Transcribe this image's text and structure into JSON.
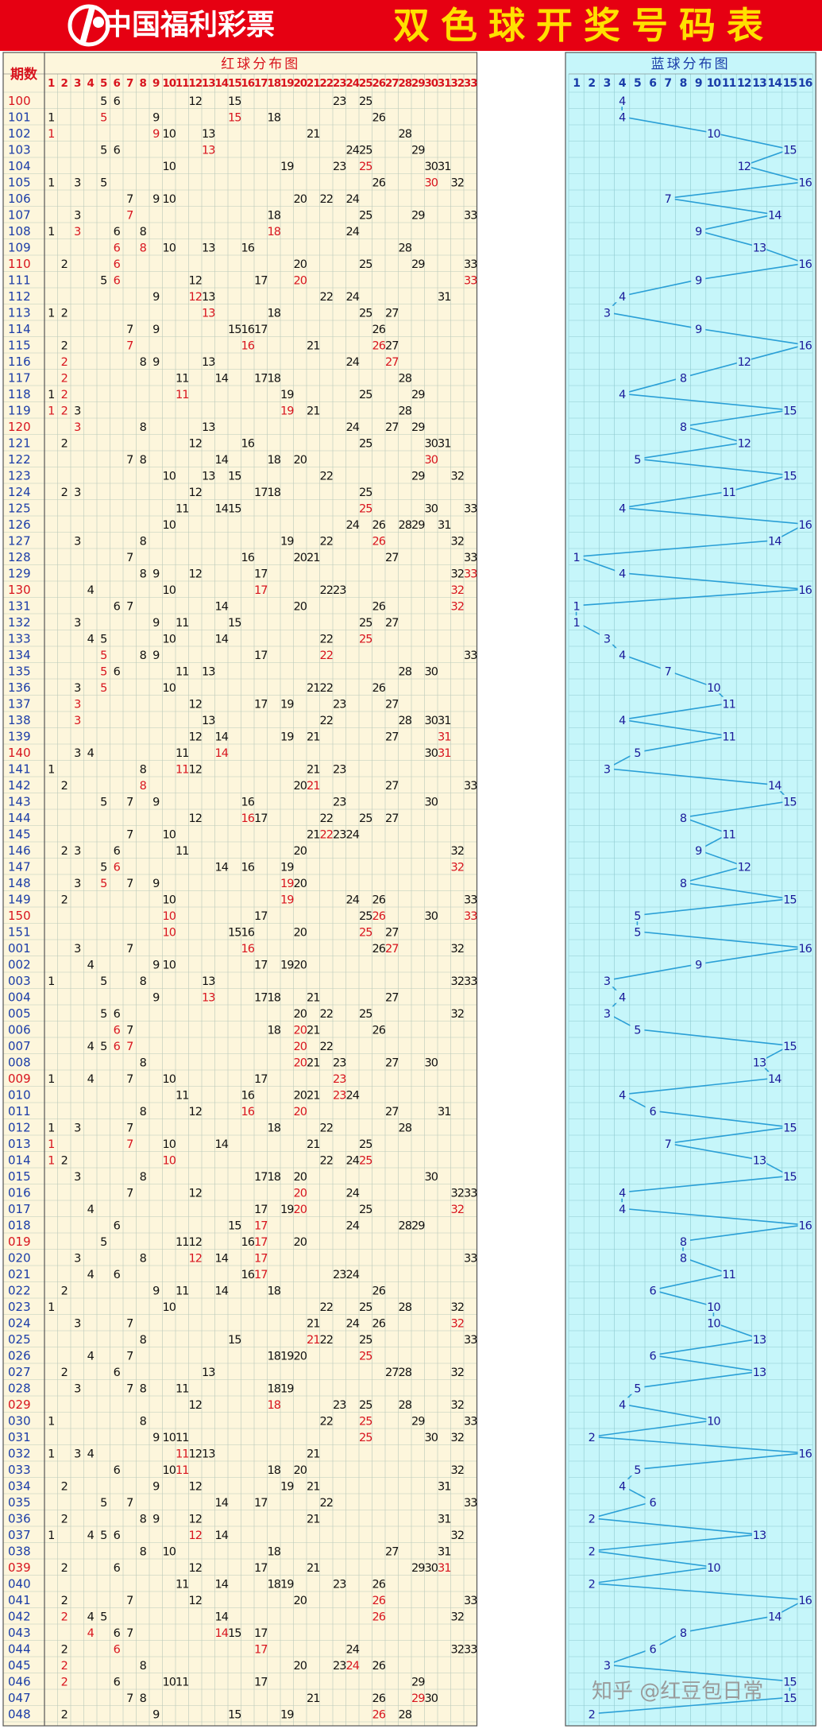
{
  "header": {
    "logo_text": "中国福利彩票",
    "title": "双色球开奖号码表",
    "watermark": "知乎 @红豆包日常"
  },
  "colors": {
    "header_bg": "#e60012",
    "title_text": "#ffe000",
    "red_panel_bg": "#fdf6dc",
    "blue_panel_bg": "#c6f6fa",
    "red_hot_number": "#d8141e",
    "number_dark": "#111111",
    "blue_number": "#1a1a9a",
    "trend_line": "#2a9fd6",
    "period_red": "#d8141e",
    "period_blue": "#1a3ca8"
  },
  "chart_data": {
    "type": "table",
    "period_header": "期数",
    "red_section_title": "红球分布图",
    "blue_section_title": "蓝球分布图",
    "red_columns": [
      "1",
      "2",
      "3",
      "4",
      "5",
      "6",
      "7",
      "8",
      "9",
      "10",
      "11",
      "12",
      "13",
      "14",
      "15",
      "16",
      "17",
      "18",
      "19",
      "20",
      "21",
      "22",
      "23",
      "24",
      "25",
      "26",
      "27",
      "28",
      "29",
      "30",
      "31",
      "32",
      "33"
    ],
    "blue_columns": [
      "1",
      "2",
      "3",
      "4",
      "5",
      "6",
      "7",
      "8",
      "9",
      "10",
      "11",
      "12",
      "13",
      "14",
      "15",
      "16"
    ],
    "draws": [
      {
        "period": "100",
        "red": [
          5,
          6,
          12,
          15,
          23,
          25
        ],
        "blue": 4
      },
      {
        "period": "101",
        "red": [
          1,
          5,
          9,
          15,
          18,
          26
        ],
        "blue": 4
      },
      {
        "period": "102",
        "red": [
          1,
          9,
          10,
          13,
          21,
          28
        ],
        "blue": 10
      },
      {
        "period": "103",
        "red": [
          5,
          6,
          13,
          24,
          25,
          29
        ],
        "blue": 15
      },
      {
        "period": "104",
        "red": [
          10,
          19,
          23,
          25,
          30,
          31
        ],
        "blue": 12
      },
      {
        "period": "105",
        "red": [
          1,
          3,
          5,
          26,
          30,
          32
        ],
        "blue": 16
      },
      {
        "period": "106",
        "red": [
          7,
          9,
          10,
          20,
          22,
          24
        ],
        "blue": 7
      },
      {
        "period": "107",
        "red": [
          3,
          7,
          18,
          25,
          29,
          33
        ],
        "blue": 14
      },
      {
        "period": "108",
        "red": [
          1,
          3,
          6,
          8,
          18,
          24
        ],
        "blue": 9
      },
      {
        "period": "109",
        "red": [
          6,
          8,
          10,
          13,
          16,
          28
        ],
        "blue": 13
      },
      {
        "period": "110",
        "red": [
          2,
          6,
          20,
          25,
          29,
          33
        ],
        "blue": 16
      },
      {
        "period": "111",
        "red": [
          5,
          6,
          12,
          17,
          20,
          33
        ],
        "blue": 9
      },
      {
        "period": "112",
        "red": [
          9,
          12,
          13,
          22,
          24,
          31
        ],
        "blue": 4
      },
      {
        "period": "113",
        "red": [
          1,
          2,
          13,
          18,
          25,
          27
        ],
        "blue": 3
      },
      {
        "period": "114",
        "red": [
          7,
          9,
          15,
          16,
          17,
          26
        ],
        "blue": 9
      },
      {
        "period": "115",
        "red": [
          2,
          7,
          16,
          21,
          26,
          27
        ],
        "blue": 16
      },
      {
        "period": "116",
        "red": [
          2,
          8,
          9,
          13,
          24,
          27
        ],
        "blue": 12
      },
      {
        "period": "117",
        "red": [
          2,
          11,
          14,
          17,
          18,
          28
        ],
        "blue": 8
      },
      {
        "period": "118",
        "red": [
          1,
          2,
          11,
          19,
          25,
          29
        ],
        "blue": 4
      },
      {
        "period": "119",
        "red": [
          1,
          2,
          3,
          19,
          21,
          28
        ],
        "blue": 15
      },
      {
        "period": "120",
        "red": [
          3,
          8,
          13,
          24,
          27,
          29
        ],
        "blue": 8
      },
      {
        "period": "121",
        "red": [
          2,
          12,
          16,
          25,
          30,
          31
        ],
        "blue": 12
      },
      {
        "period": "122",
        "red": [
          7,
          8,
          14,
          18,
          20,
          30
        ],
        "blue": 5
      },
      {
        "period": "123",
        "red": [
          10,
          13,
          15,
          22,
          29,
          32
        ],
        "blue": 15
      },
      {
        "period": "124",
        "red": [
          2,
          3,
          12,
          17,
          18,
          25
        ],
        "blue": 11
      },
      {
        "period": "125",
        "red": [
          11,
          14,
          15,
          25,
          30,
          33
        ],
        "blue": 4
      },
      {
        "period": "126",
        "red": [
          10,
          24,
          26,
          28,
          29,
          31
        ],
        "blue": 16
      },
      {
        "period": "127",
        "red": [
          3,
          8,
          19,
          22,
          26,
          32
        ],
        "blue": 14
      },
      {
        "period": "128",
        "red": [
          7,
          16,
          20,
          21,
          27,
          33
        ],
        "blue": 1
      },
      {
        "period": "129",
        "red": [
          8,
          9,
          12,
          17,
          32,
          33
        ],
        "blue": 4
      },
      {
        "period": "130",
        "red": [
          4,
          10,
          17,
          22,
          23,
          32
        ],
        "blue": 16
      },
      {
        "period": "131",
        "red": [
          6,
          7,
          14,
          20,
          26,
          32
        ],
        "blue": 1
      },
      {
        "period": "132",
        "red": [
          3,
          9,
          11,
          15,
          25,
          27
        ],
        "blue": 1
      },
      {
        "period": "133",
        "red": [
          4,
          5,
          10,
          14,
          22,
          25
        ],
        "blue": 3
      },
      {
        "period": "134",
        "red": [
          5,
          8,
          9,
          17,
          22,
          33
        ],
        "blue": 4
      },
      {
        "period": "135",
        "red": [
          5,
          6,
          11,
          13,
          28,
          30
        ],
        "blue": 7
      },
      {
        "period": "136",
        "red": [
          3,
          5,
          10,
          21,
          22,
          26
        ],
        "blue": 10
      },
      {
        "period": "137",
        "red": [
          3,
          12,
          17,
          19,
          23,
          27
        ],
        "blue": 11
      },
      {
        "period": "138",
        "red": [
          3,
          13,
          22,
          28,
          30,
          31
        ],
        "blue": 4
      },
      {
        "period": "139",
        "red": [
          12,
          14,
          19,
          21,
          27,
          31
        ],
        "blue": 11
      },
      {
        "period": "140",
        "red": [
          3,
          4,
          11,
          14,
          30,
          31
        ],
        "blue": 5
      },
      {
        "period": "141",
        "red": [
          1,
          8,
          11,
          12,
          21,
          23
        ],
        "blue": 3
      },
      {
        "period": "142",
        "red": [
          2,
          8,
          20,
          21,
          27,
          33
        ],
        "blue": 14
      },
      {
        "period": "143",
        "red": [
          5,
          7,
          9,
          16,
          23,
          30
        ],
        "blue": 15
      },
      {
        "period": "144",
        "red": [
          12,
          16,
          17,
          22,
          25,
          27
        ],
        "blue": 8
      },
      {
        "period": "145",
        "red": [
          7,
          10,
          21,
          22,
          23,
          24
        ],
        "blue": 11
      },
      {
        "period": "146",
        "red": [
          2,
          3,
          6,
          11,
          20,
          32
        ],
        "blue": 9
      },
      {
        "period": "147",
        "red": [
          5,
          6,
          14,
          16,
          19,
          32
        ],
        "blue": 12
      },
      {
        "period": "148",
        "red": [
          3,
          5,
          7,
          9,
          19,
          20
        ],
        "blue": 8
      },
      {
        "period": "149",
        "red": [
          2,
          10,
          19,
          24,
          26,
          33
        ],
        "blue": 15
      },
      {
        "period": "150",
        "red": [
          10,
          17,
          25,
          26,
          30,
          33
        ],
        "blue": 5
      },
      {
        "period": "151",
        "red": [
          10,
          15,
          16,
          20,
          25,
          27
        ],
        "blue": 5
      },
      {
        "period": "001",
        "red": [
          3,
          7,
          16,
          26,
          27,
          32
        ],
        "blue": 16
      },
      {
        "period": "002",
        "red": [
          4,
          9,
          10,
          17,
          19,
          20
        ],
        "blue": 9
      },
      {
        "period": "003",
        "red": [
          1,
          5,
          8,
          13,
          32,
          33
        ],
        "blue": 3
      },
      {
        "period": "004",
        "red": [
          9,
          13,
          17,
          18,
          21,
          27
        ],
        "blue": 4
      },
      {
        "period": "005",
        "red": [
          5,
          6,
          20,
          22,
          25,
          32
        ],
        "blue": 3
      },
      {
        "period": "006",
        "red": [
          6,
          7,
          18,
          20,
          21,
          26
        ],
        "blue": 5
      },
      {
        "period": "007",
        "red": [
          4,
          5,
          6,
          7,
          20,
          22
        ],
        "blue": 15
      },
      {
        "period": "008",
        "red": [
          8,
          20,
          21,
          23,
          27,
          30
        ],
        "blue": 13
      },
      {
        "period": "009",
        "red": [
          1,
          4,
          7,
          10,
          17,
          23
        ],
        "blue": 14
      },
      {
        "period": "010",
        "red": [
          11,
          16,
          20,
          21,
          23,
          24
        ],
        "blue": 4
      },
      {
        "period": "011",
        "red": [
          8,
          12,
          16,
          20,
          27,
          31
        ],
        "blue": 6
      },
      {
        "period": "012",
        "red": [
          1,
          3,
          7,
          18,
          22,
          28
        ],
        "blue": 15
      },
      {
        "period": "013",
        "red": [
          1,
          7,
          10,
          14,
          21,
          25
        ],
        "blue": 7
      },
      {
        "period": "014",
        "red": [
          1,
          2,
          10,
          22,
          24,
          25
        ],
        "blue": 13
      },
      {
        "period": "015",
        "red": [
          3,
          8,
          17,
          18,
          20,
          30
        ],
        "blue": 15
      },
      {
        "period": "016",
        "red": [
          7,
          12,
          20,
          24,
          32,
          33
        ],
        "blue": 4
      },
      {
        "period": "017",
        "red": [
          4,
          17,
          19,
          20,
          25,
          32
        ],
        "blue": 4
      },
      {
        "period": "018",
        "red": [
          6,
          15,
          17,
          24,
          28,
          29
        ],
        "blue": 16
      },
      {
        "period": "019",
        "red": [
          5,
          11,
          12,
          16,
          17,
          20
        ],
        "blue": 8
      },
      {
        "period": "020",
        "red": [
          3,
          8,
          12,
          14,
          17,
          33
        ],
        "blue": 8
      },
      {
        "period": "021",
        "red": [
          4,
          6,
          16,
          17,
          23,
          24
        ],
        "blue": 11
      },
      {
        "period": "022",
        "red": [
          2,
          9,
          11,
          14,
          18,
          26
        ],
        "blue": 6
      },
      {
        "period": "023",
        "red": [
          1,
          10,
          22,
          25,
          28,
          32
        ],
        "blue": 10
      },
      {
        "period": "024",
        "red": [
          3,
          7,
          21,
          24,
          26,
          32
        ],
        "blue": 10
      },
      {
        "period": "025",
        "red": [
          8,
          15,
          21,
          22,
          25,
          33
        ],
        "blue": 13
      },
      {
        "period": "026",
        "red": [
          4,
          7,
          18,
          19,
          20,
          25
        ],
        "blue": 6
      },
      {
        "period": "027",
        "red": [
          2,
          6,
          13,
          27,
          28,
          32
        ],
        "blue": 13
      },
      {
        "period": "028",
        "red": [
          3,
          7,
          8,
          11,
          18,
          19
        ],
        "blue": 5
      },
      {
        "period": "029",
        "red": [
          12,
          18,
          23,
          25,
          28,
          32
        ],
        "blue": 4
      },
      {
        "period": "030",
        "red": [
          1,
          8,
          22,
          25,
          29,
          33
        ],
        "blue": 10
      },
      {
        "period": "031",
        "red": [
          9,
          10,
          11,
          25,
          30,
          32
        ],
        "blue": 2
      },
      {
        "period": "032",
        "red": [
          1,
          3,
          4,
          11,
          12,
          13,
          21
        ],
        "blue": 16
      },
      {
        "period": "033",
        "red": [
          6,
          10,
          11,
          18,
          20,
          32
        ],
        "blue": 5
      },
      {
        "period": "034",
        "red": [
          2,
          9,
          12,
          19,
          21,
          31
        ],
        "blue": 4
      },
      {
        "period": "035",
        "red": [
          5,
          7,
          14,
          17,
          22,
          33
        ],
        "blue": 6
      },
      {
        "period": "036",
        "red": [
          2,
          8,
          9,
          12,
          21,
          31
        ],
        "blue": 2
      },
      {
        "period": "037",
        "red": [
          1,
          4,
          5,
          6,
          12,
          14,
          32
        ],
        "blue": 13
      },
      {
        "period": "038",
        "red": [
          8,
          10,
          18,
          27,
          31
        ],
        "blue": 2
      },
      {
        "period": "039",
        "red": [
          2,
          6,
          12,
          17,
          21,
          29,
          30,
          31
        ],
        "blue": 10
      },
      {
        "period": "040",
        "red": [
          11,
          14,
          18,
          19,
          23,
          26
        ],
        "blue": 2
      },
      {
        "period": "041",
        "red": [
          2,
          7,
          12,
          20,
          26,
          33
        ],
        "blue": 16
      },
      {
        "period": "042",
        "red": [
          2,
          4,
          5,
          14,
          26,
          32
        ],
        "blue": 14
      },
      {
        "period": "043",
        "red": [
          4,
          6,
          7,
          14,
          15,
          17
        ],
        "blue": 8
      },
      {
        "period": "044",
        "red": [
          2,
          6,
          17,
          24,
          32,
          33
        ],
        "blue": 6
      },
      {
        "period": "045",
        "red": [
          2,
          8,
          20,
          23,
          24,
          26
        ],
        "blue": 3
      },
      {
        "period": "046",
        "red": [
          2,
          6,
          10,
          11,
          17,
          29
        ],
        "blue": 15
      },
      {
        "period": "047",
        "red": [
          7,
          8,
          21,
          26,
          29,
          30
        ],
        "blue": 15
      },
      {
        "period": "048",
        "red": [
          2,
          9,
          15,
          19,
          26,
          28
        ],
        "blue": 2
      }
    ]
  }
}
